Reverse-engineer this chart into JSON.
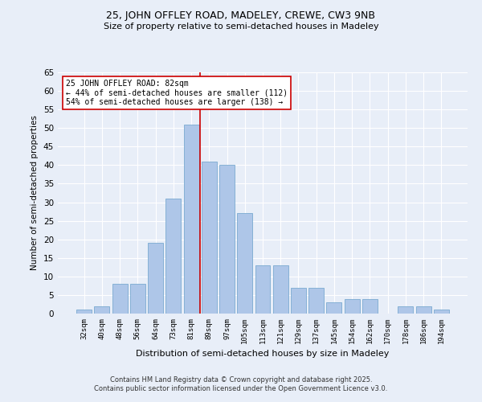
{
  "title1": "25, JOHN OFFLEY ROAD, MADELEY, CREWE, CW3 9NB",
  "title2": "Size of property relative to semi-detached houses in Madeley",
  "xlabel": "Distribution of semi-detached houses by size in Madeley",
  "ylabel": "Number of semi-detached properties",
  "categories": [
    "32sqm",
    "40sqm",
    "48sqm",
    "56sqm",
    "64sqm",
    "73sqm",
    "81sqm",
    "89sqm",
    "97sqm",
    "105sqm",
    "113sqm",
    "121sqm",
    "129sqm",
    "137sqm",
    "145sqm",
    "154sqm",
    "162sqm",
    "170sqm",
    "178sqm",
    "186sqm",
    "194sqm"
  ],
  "values": [
    1,
    2,
    8,
    8,
    19,
    31,
    51,
    41,
    40,
    27,
    13,
    13,
    7,
    7,
    3,
    4,
    4,
    0,
    2,
    2,
    1
  ],
  "bar_color": "#aec6e8",
  "bar_edge_color": "#7aaad0",
  "vline_color": "#cc0000",
  "annotation_text": "25 JOHN OFFLEY ROAD: 82sqm\n← 44% of semi-detached houses are smaller (112)\n54% of semi-detached houses are larger (138) →",
  "annotation_box_color": "#ffffff",
  "annotation_box_edge": "#cc0000",
  "bg_color": "#e8eef8",
  "plot_bg_color": "#e8eef8",
  "footer1": "Contains HM Land Registry data © Crown copyright and database right 2025.",
  "footer2": "Contains public sector information licensed under the Open Government Licence v3.0.",
  "ylim": [
    0,
    65
  ],
  "yticks": [
    0,
    5,
    10,
    15,
    20,
    25,
    30,
    35,
    40,
    45,
    50,
    55,
    60,
    65
  ]
}
